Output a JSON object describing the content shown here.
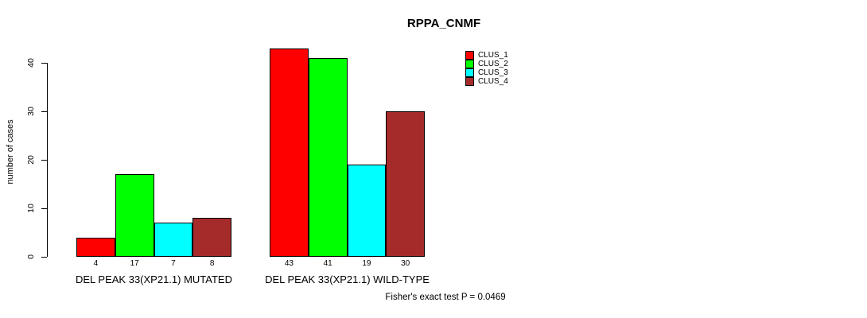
{
  "chart_data": {
    "type": "bar",
    "title": "RPPA_CNMF",
    "ylabel": "number of cases",
    "xlabel": "",
    "ylim": [
      0,
      43
    ],
    "yticks": [
      0,
      10,
      20,
      30,
      40
    ],
    "grid": false,
    "legend_position": "top-right",
    "categories": [
      "DEL PEAK 33(XP21.1) MUTATED",
      "DEL PEAK 33(XP21.1) WILD-TYPE"
    ],
    "series": [
      {
        "name": "CLUS_1",
        "color": "#FF0000",
        "values": [
          4,
          43
        ]
      },
      {
        "name": "CLUS_2",
        "color": "#00FF00",
        "values": [
          17,
          41
        ]
      },
      {
        "name": "CLUS_3",
        "color": "#00FFFF",
        "values": [
          7,
          19
        ]
      },
      {
        "name": "CLUS_4",
        "color": "#A52A2A",
        "values": [
          8,
          30
        ]
      }
    ],
    "groups": [
      {
        "label": "DEL PEAK 33(XP21.1) MUTATED",
        "values": [
          4,
          17,
          7,
          8
        ]
      },
      {
        "label": "DEL PEAK 33(XP21.1) WILD-TYPE",
        "values": [
          43,
          41,
          19,
          30
        ]
      }
    ],
    "bar_value_labels_shown": true,
    "footnote": "Fisher's exact test P = 0.0469"
  }
}
